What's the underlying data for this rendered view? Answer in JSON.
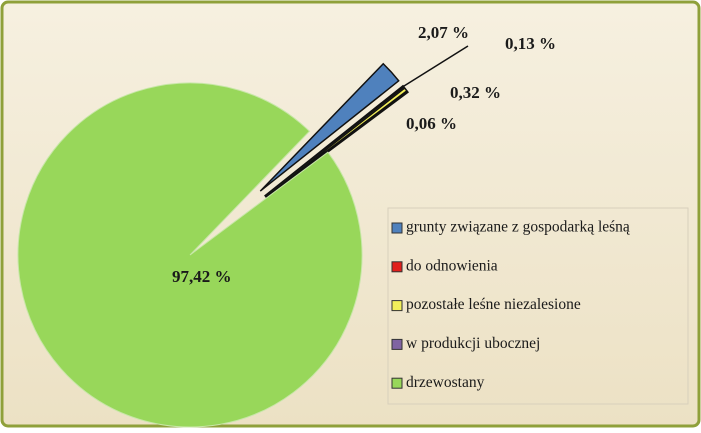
{
  "chart_data": {
    "type": "pie",
    "categories": [
      "grunty związane z gospodarką leśną",
      "do odnowienia",
      "pozostałe leśne niezalesione",
      "w produkcji ubocznej",
      "drzewostany"
    ],
    "values": [
      2.07,
      0.13,
      0.32,
      0.06,
      97.42
    ],
    "value_labels": [
      "2,07 %",
      "0,13 %",
      "0,32 %",
      "0,06 %",
      "97,42 %"
    ],
    "colors": [
      "#4f81bd",
      "#e0201c",
      "#f2ef5a",
      "#8064a2",
      "#98d75a"
    ],
    "legend": "right"
  }
}
